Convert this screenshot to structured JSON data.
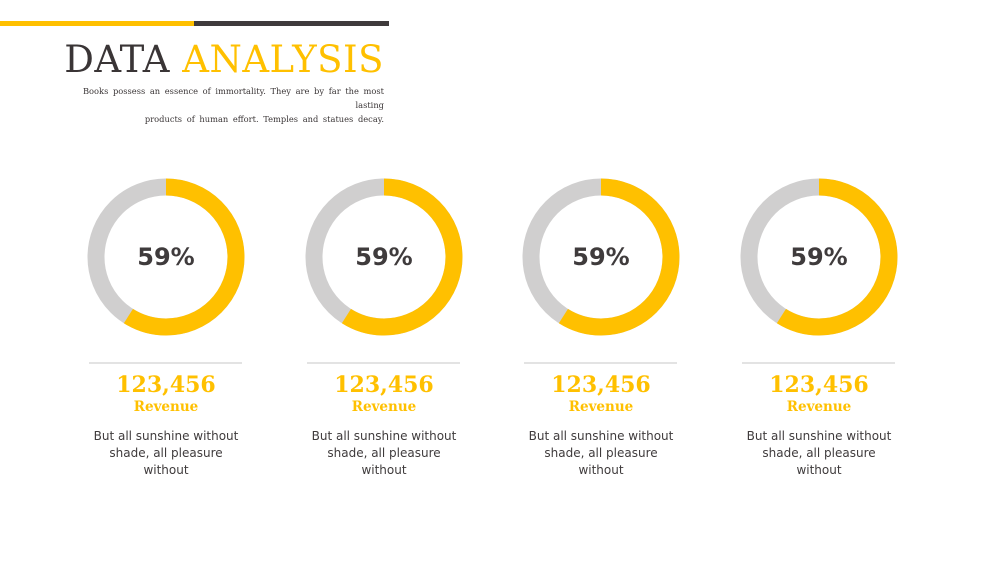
{
  "header": {
    "title_dark": "DATA",
    "title_accent": "ANALYSIS",
    "subtitle_line1": "Books possess an essence of immortality. They are by far the most lasting",
    "subtitle_line2": "products of human effort. Temples and statues decay."
  },
  "colors": {
    "accent": "#FFC000",
    "dark": "#3F3B3C",
    "track": "#D0CFCF"
  },
  "cards": [
    {
      "percent": "59%",
      "value": "123,456",
      "label": "Revenue",
      "desc_line1": "But all sunshine without",
      "desc_line2": "shade, all pleasure without"
    },
    {
      "percent": "59%",
      "value": "123,456",
      "label": "Revenue",
      "desc_line1": "But all sunshine without",
      "desc_line2": "shade, all pleasure without"
    },
    {
      "percent": "59%",
      "value": "123,456",
      "label": "Revenue",
      "desc_line1": "But all sunshine without",
      "desc_line2": "shade, all pleasure without"
    },
    {
      "percent": "59%",
      "value": "123,456",
      "label": "Revenue",
      "desc_line1": "But all sunshine without",
      "desc_line2": "shade, all pleasure without"
    }
  ],
  "chart_data": {
    "type": "pie",
    "variant": "donut",
    "values": [
      59,
      59,
      59,
      59
    ],
    "max": 100
  }
}
